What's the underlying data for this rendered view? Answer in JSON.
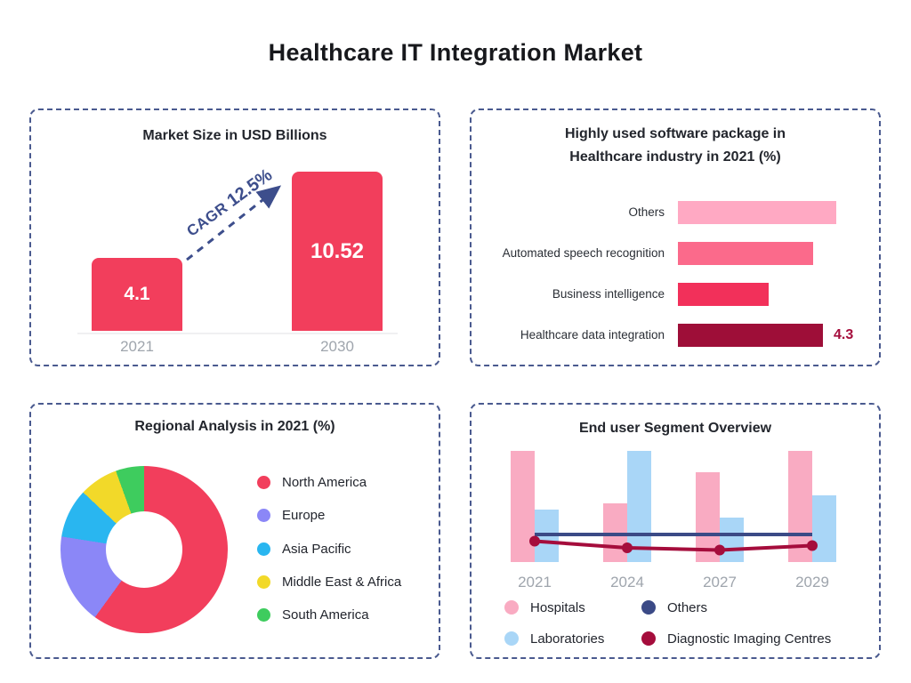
{
  "page_title": "Healthcare IT Integration Market",
  "colors": {
    "accent_crimson": "#F23E5C",
    "navy": "#3D4E8C",
    "panel_border": "#4A5A8F",
    "axis_gray": "#9FA5AD",
    "dark_text": "#22252D"
  },
  "chart_data": [
    {
      "id": "market_size",
      "type": "bar",
      "title": "Market Size in USD Billions",
      "categories": [
        "2021",
        "2030"
      ],
      "values": [
        4.1,
        10.52
      ],
      "bar_labels": [
        "4.1",
        "10.52"
      ],
      "bar_color": "#F23E5C",
      "annotation": {
        "prefix": "CAGR",
        "value": "12.5%"
      },
      "ylim": [
        0,
        12
      ],
      "grid": false
    },
    {
      "id": "software_packages",
      "type": "bar",
      "orientation": "horizontal",
      "title_line1": "Highly used software package in",
      "title_line2": "Healthcare industry in 2021 (%)",
      "categories": [
        "Others",
        "Automated speech recognition",
        "Business intelligence",
        "Healthcare data integration"
      ],
      "values": [
        4.7,
        4.0,
        2.7,
        4.3
      ],
      "value_labels": [
        "",
        "",
        "",
        "4.3"
      ],
      "colors": [
        "#FFA9C3",
        "#FB6A8B",
        "#F2305A",
        "#9E0E38"
      ],
      "xlim": [
        0,
        5
      ],
      "grid": false
    },
    {
      "id": "regional_analysis",
      "type": "pie",
      "donut": true,
      "title": "Regional Analysis in 2021 (%)",
      "labels": [
        "North America",
        "Europe",
        "Asia Pacific",
        "Middle East & Africa",
        "South America"
      ],
      "values": [
        60,
        17.5,
        9.5,
        7.5,
        5.5
      ],
      "colors": [
        "#F23E5C",
        "#8B87F7",
        "#29B6F0",
        "#F2D929",
        "#3ECC5E"
      ],
      "legend_position": "right"
    },
    {
      "id": "end_user_segment",
      "type": "bar",
      "title": "End user Segment Overview",
      "categories": [
        "2021",
        "2024",
        "2027",
        "2029"
      ],
      "value_scale": "relative_0_100_no_axis_shown",
      "series": [
        {
          "name": "Hospitals",
          "type": "bar",
          "color": "#F9ABC2",
          "values": [
            100,
            53,
            81,
            100
          ]
        },
        {
          "name": "Laboratories",
          "type": "bar",
          "color": "#A9D6F7",
          "values": [
            47,
            100,
            40,
            60
          ]
        },
        {
          "name": "Others",
          "type": "line",
          "color": "#3B4A86",
          "values": [
            28,
            28,
            28,
            28
          ]
        },
        {
          "name": "Diagnostic Imaging Centres",
          "type": "line",
          "color": "#A50D3C",
          "values": [
            22,
            16,
            14,
            18
          ]
        }
      ],
      "legend_position": "bottom",
      "grid": false
    }
  ]
}
